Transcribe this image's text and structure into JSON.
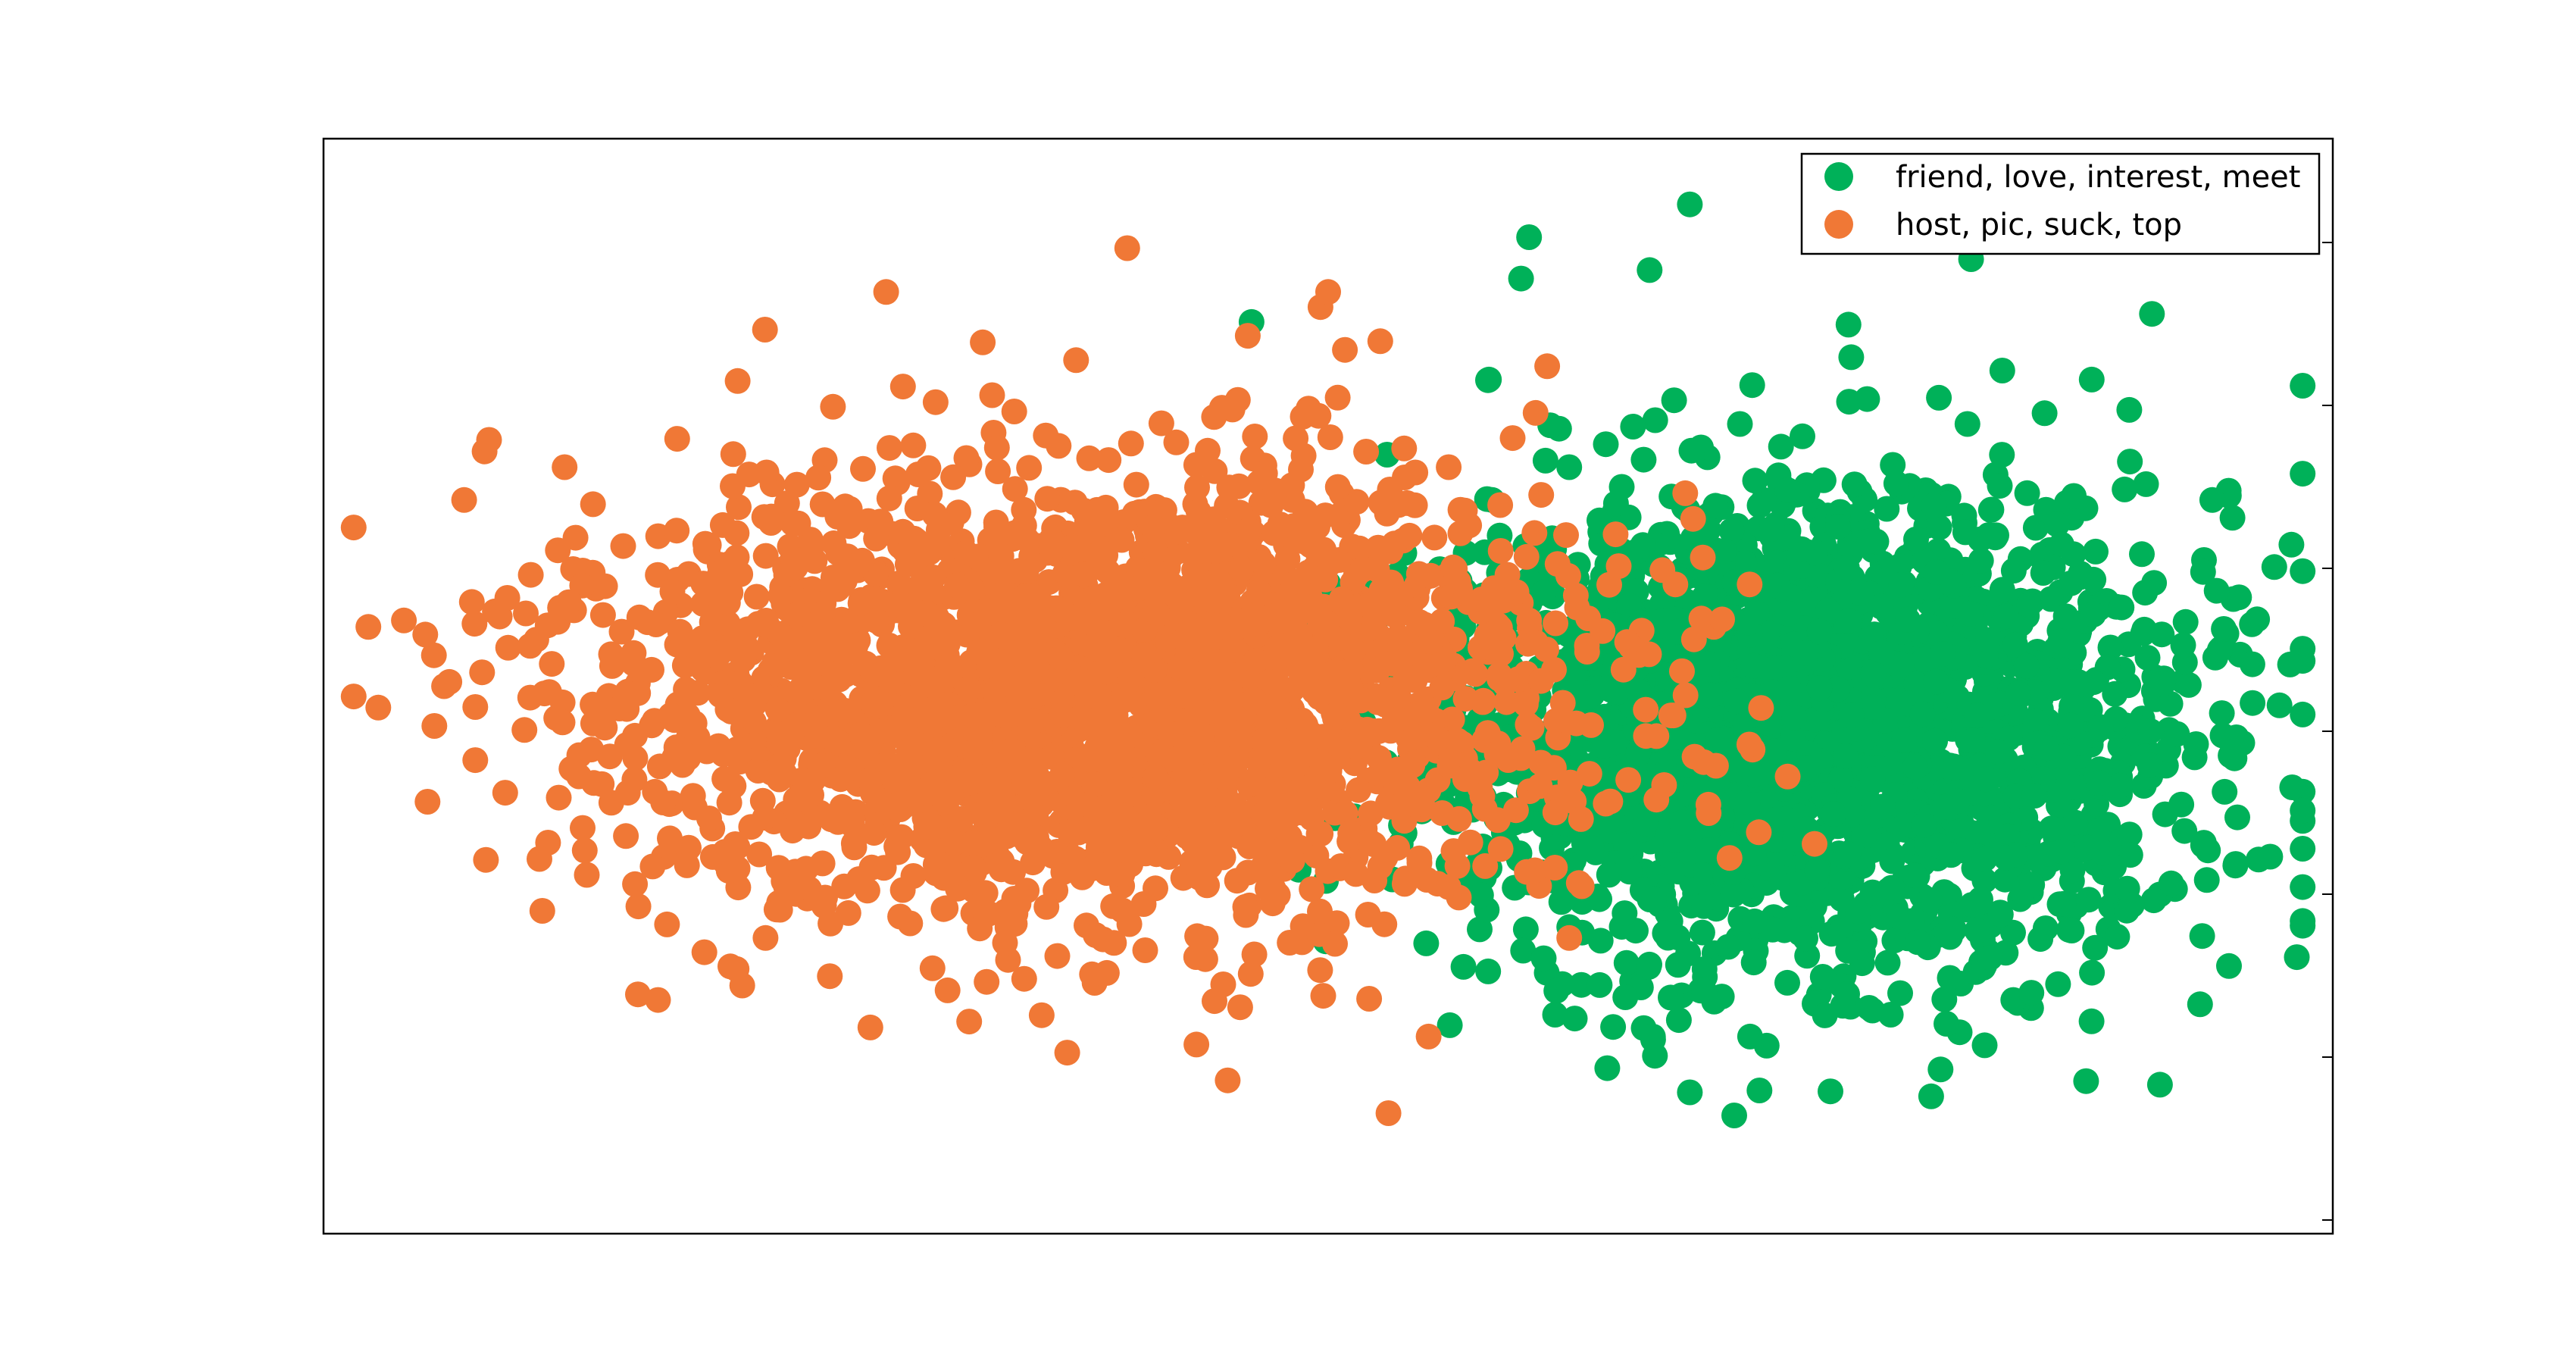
{
  "chart_data": {
    "type": "scatter",
    "title": "",
    "xlabel": "",
    "ylabel": "",
    "grid": false,
    "axis_tick_labels": false,
    "xlim": [
      0,
      100
    ],
    "ylim": [
      0,
      100
    ],
    "legend_position": "top-right",
    "series": [
      {
        "name": "friend, love, interest, meet",
        "color": "#00b159",
        "approx_point_count": 2500,
        "center": [
          74,
          46
        ],
        "spread": [
          9.0,
          11.0
        ],
        "seed": 11,
        "sample_points": [
          [
            60,
            91
          ],
          [
            68,
            94
          ],
          [
            58,
            78
          ],
          [
            66,
            88
          ],
          [
            82,
            89
          ],
          [
            79,
            92
          ],
          [
            91,
            84
          ],
          [
            94,
            67
          ],
          [
            96,
            52
          ],
          [
            86,
            37
          ],
          [
            78,
            20
          ],
          [
            75,
            13
          ],
          [
            71,
            18
          ],
          [
            62,
            28
          ],
          [
            56,
            41
          ],
          [
            58,
            58
          ],
          [
            62,
            70
          ],
          [
            88,
            78
          ],
          [
            85,
            22
          ],
          [
            90,
            30
          ]
        ]
      },
      {
        "name": "host, pic, suck, top",
        "color": "#f07836",
        "approx_point_count": 2500,
        "center": [
          38,
          49
        ],
        "spread": [
          12.0,
          10.0
        ],
        "seed": 23,
        "sample_points": [
          [
            4,
            56
          ],
          [
            7,
            67
          ],
          [
            6,
            50
          ],
          [
            12,
            70
          ],
          [
            28,
            86
          ],
          [
            40,
            90
          ],
          [
            46,
            82
          ],
          [
            56,
            70
          ],
          [
            60,
            56
          ],
          [
            63,
            42
          ],
          [
            62,
            27
          ],
          [
            55,
            18
          ],
          [
            53,
            11
          ],
          [
            45,
            14
          ],
          [
            33,
            23
          ],
          [
            22,
            27
          ],
          [
            13,
            35
          ],
          [
            10,
            46
          ],
          [
            50,
            86
          ],
          [
            19,
            63
          ]
        ]
      }
    ]
  }
}
